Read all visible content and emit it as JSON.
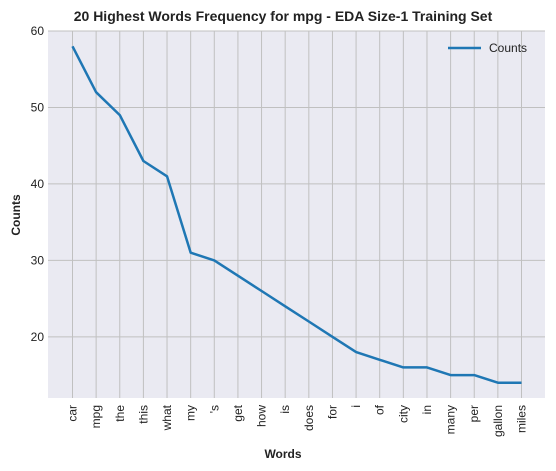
{
  "chart_data": {
    "type": "line",
    "title": "20 Highest Words Frequency for mpg - EDA Size-1 Training Set",
    "xlabel": "Words",
    "ylabel": "Counts",
    "categories": [
      "car",
      "mpg",
      "the",
      "this",
      "what",
      "my",
      "'s",
      "get",
      "how",
      "is",
      "does",
      "for",
      "i",
      "of",
      "city",
      "in",
      "many",
      "per",
      "gallon",
      "miles"
    ],
    "series": [
      {
        "name": "Counts",
        "values": [
          58,
          52,
          49,
          43,
          41,
          31,
          30,
          28,
          26,
          24,
          22,
          20,
          18,
          17,
          16,
          16,
          15,
          15,
          14,
          14
        ],
        "color": "#1f77b4"
      }
    ],
    "ylim": [
      12,
      60
    ],
    "yticks": [
      20,
      30,
      40,
      50,
      60
    ],
    "grid": true,
    "legend": "top-right",
    "background": "#eaeaf2",
    "grid_color": "#c0c0c0"
  }
}
